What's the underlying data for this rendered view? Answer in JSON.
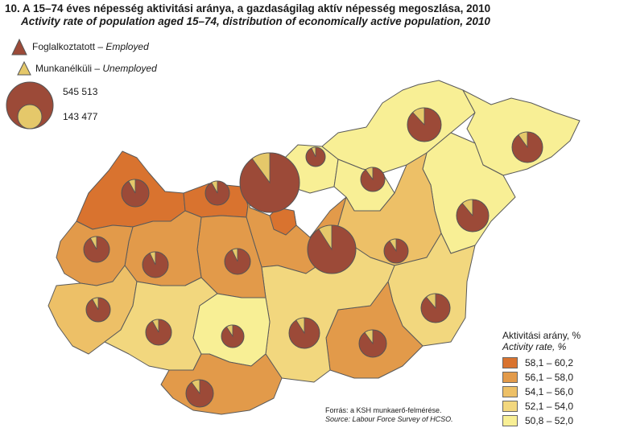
{
  "title": "10. A 15–74 éves népesség aktivitási aránya, a gazdaságilag aktív népesség megoszlása, 2010",
  "subtitle": "Activity rate of population aged 15–74, distribution of economically active population, 2010",
  "pie_legend": {
    "employed_hu": "Foglalkoztatott –",
    "employed_en": "Employed",
    "unemployed_hu": "Munkanélküli –",
    "unemployed_en": "Unemployed",
    "size_large": "545 513",
    "size_small": "143 477"
  },
  "scale_legend": {
    "title_hu": "Aktivitási arány, %",
    "title_en": "Activity rate, %",
    "classes": [
      {
        "label": "58,1 – 60,2",
        "color": "#d9732f"
      },
      {
        "label": "56,1 – 58,0",
        "color": "#e29a4a"
      },
      {
        "label": "54,1 – 56,0",
        "color": "#edc067"
      },
      {
        "label": "52,1 – 54,0",
        "color": "#f2d77e"
      },
      {
        "label": "50,8 – 52,0",
        "color": "#f8ef95"
      }
    ]
  },
  "source": {
    "hu": "Forrás: a KSH munkaerő-felmérése.",
    "en": "Source: Labour Force Survey of HCSO."
  },
  "colors": {
    "employed": "#9c4a38",
    "unemployed": "#e5c86a",
    "border": "#555555"
  }
}
